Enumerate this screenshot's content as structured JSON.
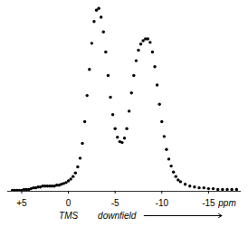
{
  "chart_data": {
    "type": "scatter",
    "color": "#000000",
    "marker": "circle",
    "tick_labels": "x",
    "grid": false,
    "xlim": [
      6.5,
      -18.5
    ],
    "ylim": [
      0,
      215
    ],
    "xticks": [
      {
        "value": 5,
        "label": "+5"
      },
      0,
      -5,
      -10,
      -15
    ],
    "annotations": [
      {
        "text": "TMS",
        "x": 0
      },
      {
        "text": "downfield",
        "x": -5.2
      },
      {
        "text": "ppm",
        "x": -17
      }
    ],
    "x": [
      6.0,
      5.75,
      5.5,
      5.25,
      5.0,
      4.75,
      4.5,
      4.25,
      4.0,
      3.75,
      3.5,
      3.25,
      3.0,
      2.75,
      2.5,
      2.25,
      2.0,
      1.75,
      1.5,
      1.25,
      1.0,
      0.75,
      0.5,
      0.25,
      0,
      -0.25,
      -0.5,
      -0.75,
      -1.0,
      -1.25,
      -1.5,
      -1.75,
      -2.0,
      -2.25,
      -2.5,
      -2.75,
      -3.0,
      -3.25,
      -3.5,
      -3.75,
      -4.0,
      -4.25,
      -4.5,
      -4.75,
      -5.0,
      -5.25,
      -5.5,
      -5.75,
      -6.0,
      -6.25,
      -6.5,
      -6.75,
      -7.0,
      -7.25,
      -7.5,
      -7.75,
      -8.0,
      -8.25,
      -8.5,
      -8.75,
      -9.0,
      -9.25,
      -9.5,
      -9.75,
      -10.0,
      -10.25,
      -10.5,
      -10.75,
      -11.0,
      -11.25,
      -11.5,
      -11.75,
      -12.0,
      -12.5,
      -13.0,
      -13.5,
      -14.0,
      -14.5,
      -15.0,
      -15.5,
      -16.0,
      -16.5,
      -17.0,
      -17.5,
      -18.0
    ],
    "values": [
      1,
      1,
      1,
      1,
      1,
      2,
      2,
      2,
      3,
      4,
      4,
      5,
      5,
      6,
      6,
      6,
      6,
      6,
      6,
      7,
      7,
      8,
      9,
      10,
      12,
      14,
      17,
      21,
      28,
      38,
      55,
      80,
      110,
      140,
      170,
      195,
      208,
      210,
      200,
      183,
      160,
      133,
      108,
      88,
      72,
      62,
      57,
      56,
      61,
      72,
      92,
      113,
      133,
      150,
      162,
      169,
      173,
      175,
      175,
      171,
      160,
      143,
      122,
      100,
      80,
      63,
      48,
      37,
      29,
      22,
      17,
      13,
      11,
      8,
      6,
      5,
      4,
      4,
      3,
      3,
      2,
      2,
      2,
      2,
      2
    ]
  }
}
